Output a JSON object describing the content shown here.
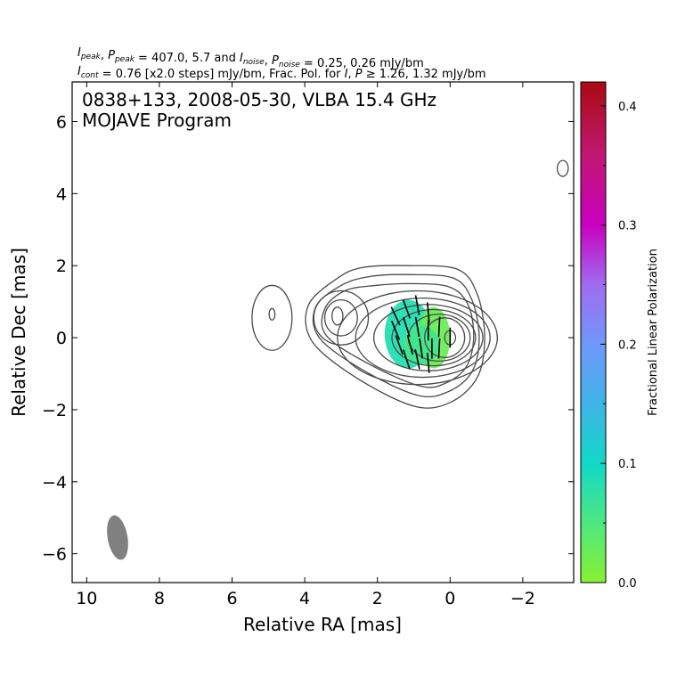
{
  "chart_data": {
    "type": "contour",
    "header": {
      "line1_parts": [
        {
          "text": "I",
          "style": "italic"
        },
        {
          "text": "peak",
          "style": "sub"
        },
        {
          "text": ", ",
          "style": "normal"
        },
        {
          "text": "P",
          "style": "italic"
        },
        {
          "text": "peak",
          "style": "sub"
        },
        {
          "text": " = 407.0, 5.7 and ",
          "style": "normal"
        },
        {
          "text": "I",
          "style": "italic"
        },
        {
          "text": "noise",
          "style": "sub"
        },
        {
          "text": ", ",
          "style": "normal"
        },
        {
          "text": "P",
          "style": "italic"
        },
        {
          "text": "noise",
          "style": "sub"
        },
        {
          "text": " = 0.25, 0.26 mJy/bm",
          "style": "normal"
        }
      ],
      "line2_parts": [
        {
          "text": "I",
          "style": "italic"
        },
        {
          "text": "cont",
          "style": "sub"
        },
        {
          "text": " = 0.76 [x2.0 steps] mJy/bm, Frac. Pol. for ",
          "style": "normal"
        },
        {
          "text": "I",
          "style": "italic"
        },
        {
          "text": ", ",
          "style": "normal"
        },
        {
          "text": "P",
          "style": "italic"
        },
        {
          "text": " ≥ 1.26, 1.32 mJy/bm",
          "style": "normal"
        }
      ]
    },
    "title_lines": [
      "0838+133, 2008-05-30, VLBA 15.4 GHz",
      "MOJAVE Program"
    ],
    "xlabel": "Relative RA [mas]",
    "ylabel": "Relative Dec [mas]",
    "xlim": [
      10.4,
      -3.4
    ],
    "ylim": [
      -6.8,
      7.1
    ],
    "xticks": [
      10,
      8,
      6,
      4,
      2,
      0,
      -2
    ],
    "yticks": [
      -6,
      -4,
      -2,
      0,
      2,
      4,
      6
    ],
    "xtick_labels": [
      "10",
      "8",
      "6",
      "4",
      "2",
      "0",
      "−2"
    ],
    "ytick_labels": [
      "−6",
      "−4",
      "−2",
      "0",
      "2",
      "4",
      "6"
    ],
    "contour_color": "#4a4a4a",
    "contours": [
      {
        "cx": 0.9,
        "cy": 0.0,
        "rx": 2.2,
        "ry": 1.3
      },
      {
        "cx": 0.75,
        "cy": 0.0,
        "rx": 1.85,
        "ry": 1.1
      },
      {
        "cx": 0.6,
        "cy": 0.0,
        "rx": 1.5,
        "ry": 0.92
      },
      {
        "cx": 0.45,
        "cy": 0.0,
        "rx": 1.15,
        "ry": 0.78
      },
      {
        "cx": 0.3,
        "cy": 0.0,
        "rx": 0.85,
        "ry": 0.65
      },
      {
        "cx": 0.15,
        "cy": 0.0,
        "rx": 0.55,
        "ry": 0.55
      },
      {
        "cx": 0.0,
        "cy": 0.0,
        "rx": 0.15,
        "ry": 0.2
      },
      {
        "cx": 3.0,
        "cy": 0.55,
        "rx": 0.75,
        "ry": 0.75
      },
      {
        "cx": 3.0,
        "cy": 0.55,
        "rx": 0.45,
        "ry": 0.5
      },
      {
        "cx": 3.1,
        "cy": 0.6,
        "rx": 0.15,
        "ry": 0.25
      },
      {
        "cx": 4.9,
        "cy": 0.55,
        "rx": 0.55,
        "ry": 0.9
      },
      {
        "cx": 4.9,
        "cy": 0.65,
        "rx": 0.08,
        "ry": 0.16
      },
      {
        "cx": -3.1,
        "cy": 4.7,
        "rx": 0.15,
        "ry": 0.22
      }
    ],
    "envelopes": [
      {
        "points": [
          [
            1.0,
            -1.9
          ],
          [
            2.6,
            -1.1
          ],
          [
            3.8,
            -0.1
          ],
          [
            3.9,
            0.9
          ],
          [
            3.1,
            1.65
          ],
          [
            2.4,
            1.95
          ],
          [
            1.2,
            2.0
          ],
          [
            -0.2,
            1.9
          ],
          [
            -0.75,
            1.2
          ],
          [
            -0.95,
            0.0
          ],
          [
            -0.75,
            -1.1
          ],
          [
            0.0,
            -1.8
          ]
        ]
      },
      {
        "points": [
          [
            0.9,
            -1.6
          ],
          [
            2.4,
            -0.9
          ],
          [
            3.6,
            0.0
          ],
          [
            3.7,
            0.85
          ],
          [
            3.0,
            1.45
          ],
          [
            2.2,
            1.7
          ],
          [
            1.1,
            1.75
          ],
          [
            -0.1,
            1.65
          ],
          [
            -0.6,
            1.05
          ],
          [
            -0.8,
            0.0
          ],
          [
            -0.6,
            -0.95
          ],
          [
            0.05,
            -1.5
          ]
        ]
      },
      {
        "points": [
          [
            0.8,
            -1.35
          ],
          [
            2.2,
            -0.75
          ],
          [
            3.4,
            0.05
          ],
          [
            3.45,
            0.8
          ],
          [
            2.9,
            1.3
          ],
          [
            2.05,
            1.45
          ],
          [
            1.0,
            1.5
          ],
          [
            0.0,
            1.4
          ],
          [
            -0.5,
            0.9
          ],
          [
            -0.65,
            0.0
          ],
          [
            -0.45,
            -0.8
          ],
          [
            0.1,
            -1.25
          ]
        ]
      }
    ],
    "polarization_patches": [
      {
        "cx": 1.15,
        "cy": 0.1,
        "rx": 0.65,
        "ry": 0.95,
        "frac_pol": 0.085
      },
      {
        "cx": 0.45,
        "cy": 0.0,
        "rx": 0.45,
        "ry": 0.85,
        "frac_pol": 0.025
      },
      {
        "cx": 0.8,
        "cy": -0.2,
        "rx": 0.5,
        "ry": 0.55,
        "frac_pol": 0.06
      }
    ],
    "evpa_ticks": [
      {
        "x": 1.5,
        "y": 0.6,
        "angle": 25
      },
      {
        "x": 1.2,
        "y": 0.8,
        "angle": 20
      },
      {
        "x": 0.9,
        "y": 0.9,
        "angle": 10
      },
      {
        "x": 0.6,
        "y": 0.7,
        "angle": 5
      },
      {
        "x": 1.5,
        "y": 0.2,
        "angle": 22
      },
      {
        "x": 1.2,
        "y": 0.3,
        "angle": 18
      },
      {
        "x": 0.9,
        "y": 0.3,
        "angle": 10
      },
      {
        "x": 0.6,
        "y": 0.2,
        "angle": 0
      },
      {
        "x": 1.4,
        "y": -0.2,
        "angle": 20
      },
      {
        "x": 1.1,
        "y": -0.2,
        "angle": 15
      },
      {
        "x": 0.8,
        "y": -0.3,
        "angle": 8
      },
      {
        "x": 0.5,
        "y": -0.3,
        "angle": 0
      },
      {
        "x": 1.2,
        "y": -0.6,
        "angle": 18
      },
      {
        "x": 0.9,
        "y": -0.6,
        "angle": 12
      },
      {
        "x": 0.6,
        "y": -0.7,
        "angle": 5
      },
      {
        "x": 0.3,
        "y": 0.3,
        "angle": -3
      },
      {
        "x": 0.3,
        "y": -0.3,
        "angle": -3
      },
      {
        "x": 0.0,
        "y": 0.0,
        "angle": 0
      }
    ],
    "beam": {
      "cx": 9.15,
      "cy": -5.55,
      "major": 1.25,
      "minor": 0.55,
      "pa": -10,
      "color": "#808080"
    },
    "colorbar": {
      "label": "Fractional Linear Polarization",
      "range": [
        0.0,
        0.42
      ],
      "ticks": [
        0.0,
        0.1,
        0.2,
        0.3,
        0.4
      ],
      "tick_labels": [
        "0.0",
        "0.1",
        "0.2",
        "0.3",
        "0.4"
      ],
      "stops": [
        {
          "v": 0.0,
          "color": "#88f030"
        },
        {
          "v": 0.05,
          "color": "#4ee880"
        },
        {
          "v": 0.1,
          "color": "#12d8c8"
        },
        {
          "v": 0.15,
          "color": "#40b4e8"
        },
        {
          "v": 0.2,
          "color": "#6e98fa"
        },
        {
          "v": 0.25,
          "color": "#a06cf0"
        },
        {
          "v": 0.3,
          "color": "#c800c0"
        },
        {
          "v": 0.36,
          "color": "#c01870"
        },
        {
          "v": 0.42,
          "color": "#aa0a10"
        }
      ]
    }
  }
}
